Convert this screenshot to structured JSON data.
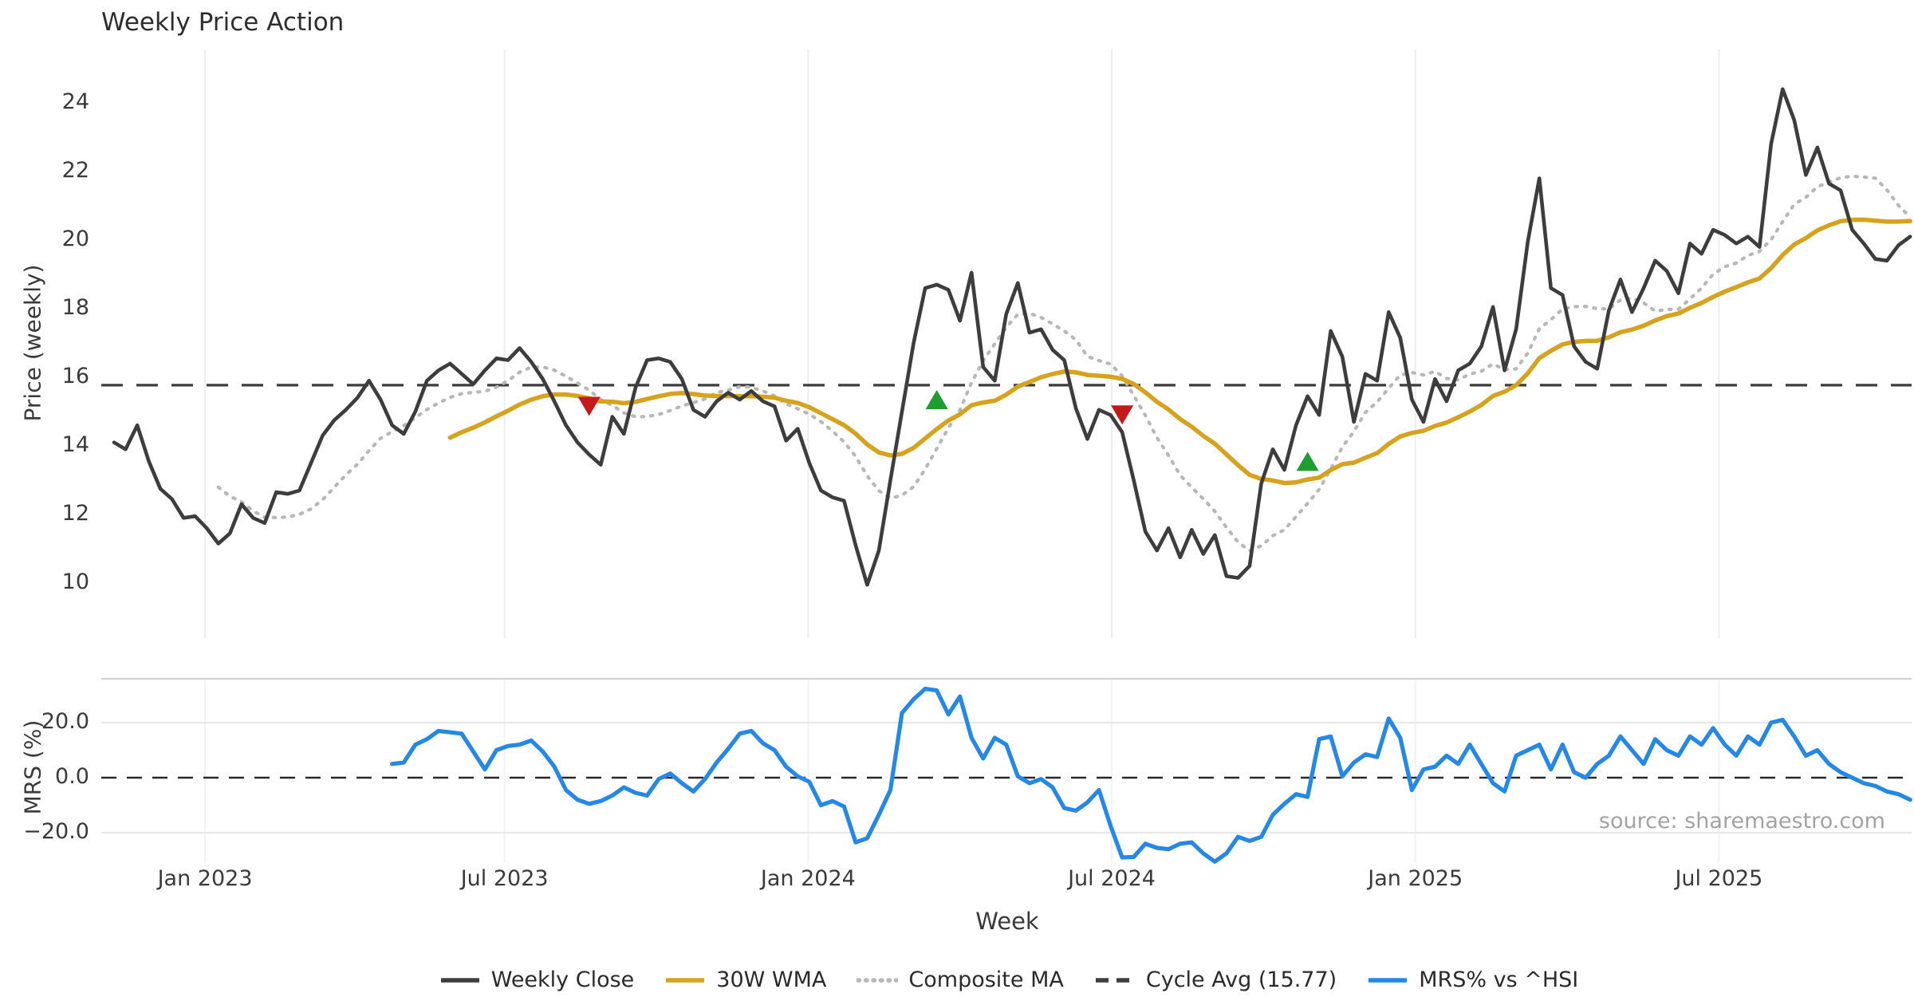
{
  "title": "Weekly Price Action",
  "source_note": "source: sharemaestro.com",
  "colors": {
    "close": "#3d3d3d",
    "wma": "#d7a31d",
    "composite": "#b8b8b8",
    "cycle": "#3d3d3d",
    "mrs": "#2488e8",
    "sell": "#c61a1a",
    "buy": "#1e9e30",
    "grid": "#eceef0",
    "panel_grid": "#e7e7e7",
    "panel_border": "#d0d0d0",
    "text": "#3a3a3a",
    "muted": "#a3a3a3"
  },
  "legend": {
    "items": [
      {
        "label": "Weekly Close",
        "style": "solid",
        "color_key": "close"
      },
      {
        "label": "30W WMA",
        "style": "solid",
        "color_key": "wma"
      },
      {
        "label": "Composite MA",
        "style": "dotted",
        "color_key": "composite"
      },
      {
        "label": "Cycle Avg (15.77)",
        "style": "dashed",
        "color_key": "cycle"
      },
      {
        "label": "MRS% vs ^HSI",
        "style": "solid",
        "color_key": "mrs"
      }
    ]
  },
  "chart_data": [
    {
      "type": "line",
      "title": "Weekly Price Action",
      "xlabel": "Week",
      "ylabel": "Price (weekly)",
      "x_unit": "week_index",
      "ylim": [
        9.3,
        25.2
      ],
      "yticks": [
        10,
        12,
        14,
        16,
        18,
        20,
        22,
        24
      ],
      "grid": "vertical-light",
      "x_ticks": [
        {
          "label": "Jan 2023",
          "week": 7.85
        },
        {
          "label": "Jul 2023",
          "week": 33.7
        },
        {
          "label": "Jan 2024",
          "week": 59.9
        },
        {
          "label": "Jul 2024",
          "week": 86.1
        },
        {
          "label": "Jan 2025",
          "week": 112.3
        },
        {
          "label": "Jul 2025",
          "week": 138.5
        }
      ],
      "cycle_avg": 15.77,
      "series": [
        {
          "name": "Weekly Close",
          "style": "solid",
          "color_key": "close",
          "values": [
            14.1,
            13.9,
            14.6,
            13.55,
            12.75,
            12.45,
            11.9,
            11.95,
            11.6,
            11.15,
            11.45,
            12.3,
            11.9,
            11.75,
            12.65,
            12.6,
            12.7,
            13.5,
            14.3,
            14.75,
            15.05,
            15.4,
            15.9,
            15.35,
            14.6,
            14.35,
            15.0,
            15.9,
            16.2,
            16.4,
            16.1,
            15.8,
            16.2,
            16.55,
            16.5,
            16.85,
            16.45,
            15.95,
            15.3,
            14.6,
            14.1,
            13.75,
            13.45,
            14.85,
            14.35,
            15.7,
            16.5,
            16.55,
            16.45,
            15.95,
            15.05,
            14.85,
            15.3,
            15.55,
            15.35,
            15.6,
            15.3,
            15.15,
            14.15,
            14.5,
            13.5,
            12.7,
            12.5,
            12.4,
            11.1,
            9.95,
            10.95,
            13.0,
            15.0,
            17.0,
            18.6,
            18.7,
            18.55,
            17.65,
            19.05,
            16.3,
            15.9,
            17.85,
            18.75,
            17.3,
            17.4,
            16.8,
            16.5,
            15.1,
            14.2,
            15.05,
            14.9,
            14.4,
            13.0,
            11.5,
            10.95,
            11.6,
            10.75,
            11.55,
            10.85,
            11.4,
            10.2,
            10.15,
            10.5,
            12.9,
            13.9,
            13.3,
            14.6,
            15.45,
            14.9,
            17.35,
            16.6,
            14.7,
            16.1,
            15.9,
            17.9,
            17.15,
            15.35,
            14.7,
            15.95,
            15.3,
            16.2,
            16.4,
            16.9,
            18.05,
            16.2,
            17.4,
            19.95,
            21.8,
            18.6,
            18.4,
            16.9,
            16.45,
            16.25,
            17.95,
            18.85,
            17.9,
            18.6,
            19.4,
            19.1,
            18.45,
            19.9,
            19.6,
            20.3,
            20.15,
            19.9,
            20.1,
            19.8,
            22.8,
            24.4,
            23.5,
            21.9,
            22.7,
            21.65,
            21.45,
            20.3,
            19.9,
            19.45,
            19.4,
            19.85,
            20.1
          ]
        },
        {
          "name": "30W WMA",
          "style": "solid",
          "color_key": "wma",
          "derived": {
            "method": "wma",
            "window": 30,
            "of": "Weekly Close"
          }
        },
        {
          "name": "Composite MA",
          "style": "dotted",
          "color_key": "composite",
          "derived": {
            "method": "sma",
            "window": 10,
            "of": "Weekly Close"
          }
        },
        {
          "name": "Cycle Avg (15.77)",
          "style": "dashed",
          "color_key": "cycle",
          "value": 15.77
        }
      ],
      "markers": [
        {
          "type": "sell",
          "shape": "triangle-down",
          "week": 41,
          "price": 15.15
        },
        {
          "type": "buy",
          "shape": "triangle-up",
          "week": 71,
          "price": 15.35
        },
        {
          "type": "sell",
          "shape": "triangle-down",
          "week": 87,
          "price": 14.9
        },
        {
          "type": "buy",
          "shape": "triangle-up",
          "week": 103,
          "price": 13.55
        }
      ]
    },
    {
      "type": "line",
      "ylabel": "MRS (%)",
      "x_unit": "week_index",
      "ylim": [
        -36,
        36
      ],
      "yticks": [
        {
          "value": 20,
          "label": "20.0"
        },
        {
          "value": 0,
          "label": "0.0"
        },
        {
          "value": -20,
          "label": "−20.0"
        }
      ],
      "zero_line": "dashed",
      "series": [
        {
          "name": "MRS% vs ^HSI",
          "style": "solid",
          "color_key": "mrs",
          "start_week": 24,
          "values": [
            5,
            5.5,
            12,
            14,
            17,
            16.5,
            16,
            9.5,
            3,
            10,
            11.5,
            12,
            13.5,
            9.5,
            4,
            -4.5,
            -8,
            -9.5,
            -8.5,
            -6.5,
            -3.5,
            -5.5,
            -6.5,
            -0.5,
            1.5,
            -2,
            -5,
            -0.5,
            5.5,
            10.5,
            16,
            17,
            12.5,
            10,
            4,
            0.5,
            -1.5,
            -10,
            -8.5,
            -10.5,
            -23.5,
            -22,
            -13.5,
            -4.5,
            23.5,
            28.5,
            32.3,
            31.7,
            23,
            29.5,
            14.5,
            7,
            14.5,
            12,
            0.5,
            -2,
            -0.5,
            -3.5,
            -11,
            -12,
            -9,
            -4.5,
            -17.5,
            -29,
            -28.8,
            -24,
            -25.5,
            -26,
            -24,
            -23.5,
            -27.5,
            -30.5,
            -27.5,
            -21.5,
            -23,
            -21.5,
            -13.5,
            -9.5,
            -6,
            -7,
            14,
            15,
            0.5,
            5.5,
            8.5,
            7.5,
            21.5,
            14.5,
            -4.5,
            3,
            4,
            8,
            5,
            12,
            5,
            -2,
            -5,
            8,
            10,
            12,
            3,
            12,
            2,
            0,
            5,
            8,
            15,
            10,
            5,
            14,
            10,
            8,
            15,
            12,
            18,
            12,
            8,
            15,
            12,
            20,
            21,
            15,
            8,
            10,
            5,
            2,
            0,
            -2,
            -3,
            -5,
            -6,
            -8
          ]
        }
      ]
    }
  ]
}
